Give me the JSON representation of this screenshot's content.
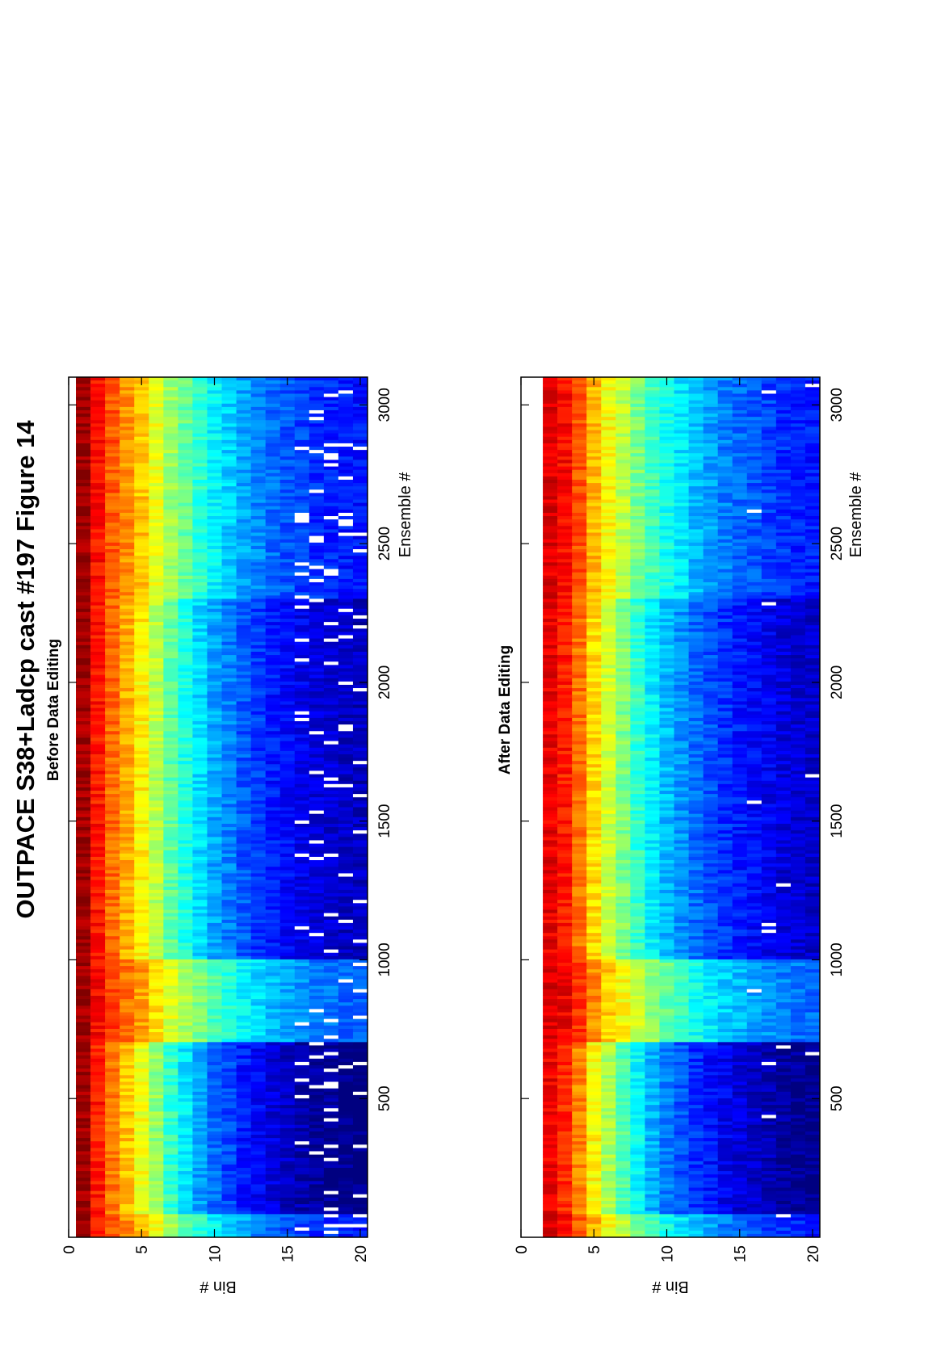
{
  "figure": {
    "title": "OUTPACE S38+Ladcp cast #197  Figure 14"
  },
  "chart_data": [
    {
      "type": "heatmap",
      "title": "Before Data Editing",
      "xlabel": "Ensemble #",
      "ylabel": "Bin #",
      "xlim": [
        0,
        3100
      ],
      "ylim": [
        0,
        20.5
      ],
      "xticks": [
        500,
        1000,
        1500,
        2000,
        2500,
        3000
      ],
      "xtick_labels": [
        "500",
        "1000",
        "1500",
        "2000",
        "2500",
        "3000"
      ],
      "yticks": [
        0,
        5,
        10,
        15,
        20
      ],
      "ytick_labels": [
        "0",
        "5",
        "10",
        "15",
        "20"
      ],
      "colormap": "jet",
      "bins": 20,
      "ensembles": 3100,
      "depth_profile_bin_levels": [
        0.97,
        0.86,
        0.78,
        0.72,
        0.66,
        0.58,
        0.5,
        0.44,
        0.38,
        0.33,
        0.29,
        0.25,
        0.22,
        0.19,
        0.17,
        0.15,
        0.13,
        0.12,
        0.11,
        0.1
      ],
      "first_bin_missing": false,
      "white_gap_rate_deep_bins": 0.08,
      "descent_events_ensemble": [
        80,
        700,
        1000
      ]
    },
    {
      "type": "heatmap",
      "title": "After Data Editing",
      "xlabel": "Ensemble #",
      "ylabel": "Bin #",
      "xlim": [
        0,
        3100
      ],
      "ylim": [
        0,
        20.5
      ],
      "xticks": [
        500,
        1000,
        1500,
        2000,
        2500,
        3000
      ],
      "xtick_labels": [
        "500",
        "1000",
        "1500",
        "2000",
        "2500",
        "3000"
      ],
      "yticks": [
        0,
        5,
        10,
        15,
        20
      ],
      "ytick_labels": [
        "0",
        "5",
        "10",
        "15",
        "20"
      ],
      "colormap": "jet",
      "bins": 20,
      "ensembles": 3100,
      "depth_profile_bin_levels": [
        0,
        0.9,
        0.86,
        0.78,
        0.68,
        0.6,
        0.53,
        0.46,
        0.4,
        0.35,
        0.31,
        0.27,
        0.24,
        0.21,
        0.19,
        0.17,
        0.15,
        0.13,
        0.12,
        0.11
      ],
      "first_bin_missing": true,
      "white_gap_rate_deep_bins": 0.02,
      "descent_events_ensemble": [
        80,
        700,
        1000
      ]
    }
  ]
}
